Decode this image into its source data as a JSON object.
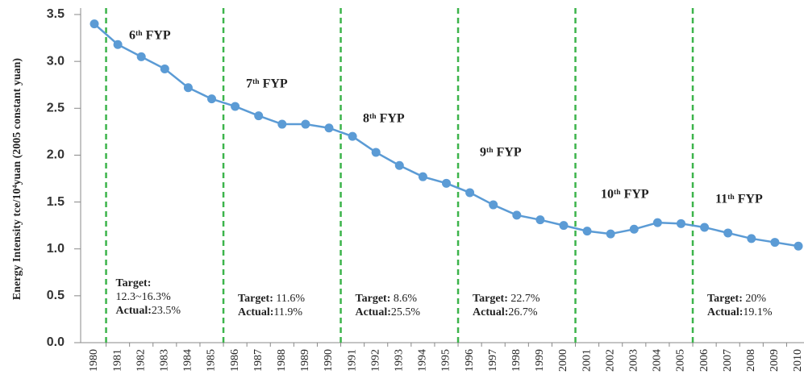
{
  "chart_data": {
    "type": "line",
    "y_label": "Energy Intensity tce/10⁴yuan (2005 constant  yuan)",
    "categories": [
      "1980",
      "1981",
      "1982",
      "1983",
      "1984",
      "1985",
      "1986",
      "1987",
      "1988",
      "1989",
      "1990",
      "1991",
      "1992",
      "1993",
      "1994",
      "1995",
      "1996",
      "1997",
      "1998",
      "1999",
      "2000",
      "2001",
      "2002",
      "2003",
      "2004",
      "2005",
      "2006",
      "2007",
      "2008",
      "2009",
      "2010"
    ],
    "series": [
      {
        "name": "Energy Intensity",
        "color": "#5b9bd5",
        "values": [
          3.4,
          3.18,
          3.05,
          2.92,
          2.72,
          2.6,
          2.52,
          2.42,
          2.33,
          2.33,
          2.29,
          2.2,
          2.03,
          1.89,
          1.77,
          1.7,
          1.6,
          1.47,
          1.36,
          1.31,
          1.25,
          1.19,
          1.16,
          1.21,
          1.28,
          1.27,
          1.23,
          1.17,
          1.11,
          1.07,
          1.03
        ]
      }
    ],
    "ylim": [
      0,
      3.5
    ],
    "yticks": [
      {
        "value": 0,
        "label": "0.0"
      },
      0.5,
      {
        "value": 1,
        "label": "1.0"
      },
      1.5,
      {
        "value": 2,
        "label": "2.0"
      },
      2.5,
      {
        "value": 3,
        "label": "3.0"
      },
      3.5
    ],
    "divider_color": "#3cb44b",
    "periods": [
      {
        "label": "6ᵗʰ FYP",
        "notes": [
          {
            "key": "Target:"
          },
          {
            "text": "12.3~16.3%"
          },
          {
            "key": "Actual:",
            "text": "23.5%"
          }
        ]
      },
      {
        "label": "7ᵗʰ FYP",
        "notes": [
          {
            "key": "Target:",
            "text": " 11.6%"
          },
          {
            "key": "Actual:",
            "text": "11.9%"
          }
        ]
      },
      {
        "label": "8ᵗʰ FYP",
        "notes": [
          {
            "key": "Target:",
            "text": " 8.6%"
          },
          {
            "key": "Actual:",
            "text": "25.5%"
          }
        ]
      },
      {
        "label": "9ᵗʰ FYP",
        "notes": [
          {
            "key": "Target:",
            "text": " 22.7%"
          },
          {
            "key": "Actual:",
            "text": "26.7%"
          }
        ]
      },
      {
        "label": "10ᵗʰ FYP",
        "notes": []
      },
      {
        "label": "11ᵗʰ FYP",
        "notes": [
          {
            "key": "Target:",
            "text": " 20%"
          },
          {
            "key": "Actual:",
            "text": "19.1%"
          }
        ]
      }
    ]
  }
}
